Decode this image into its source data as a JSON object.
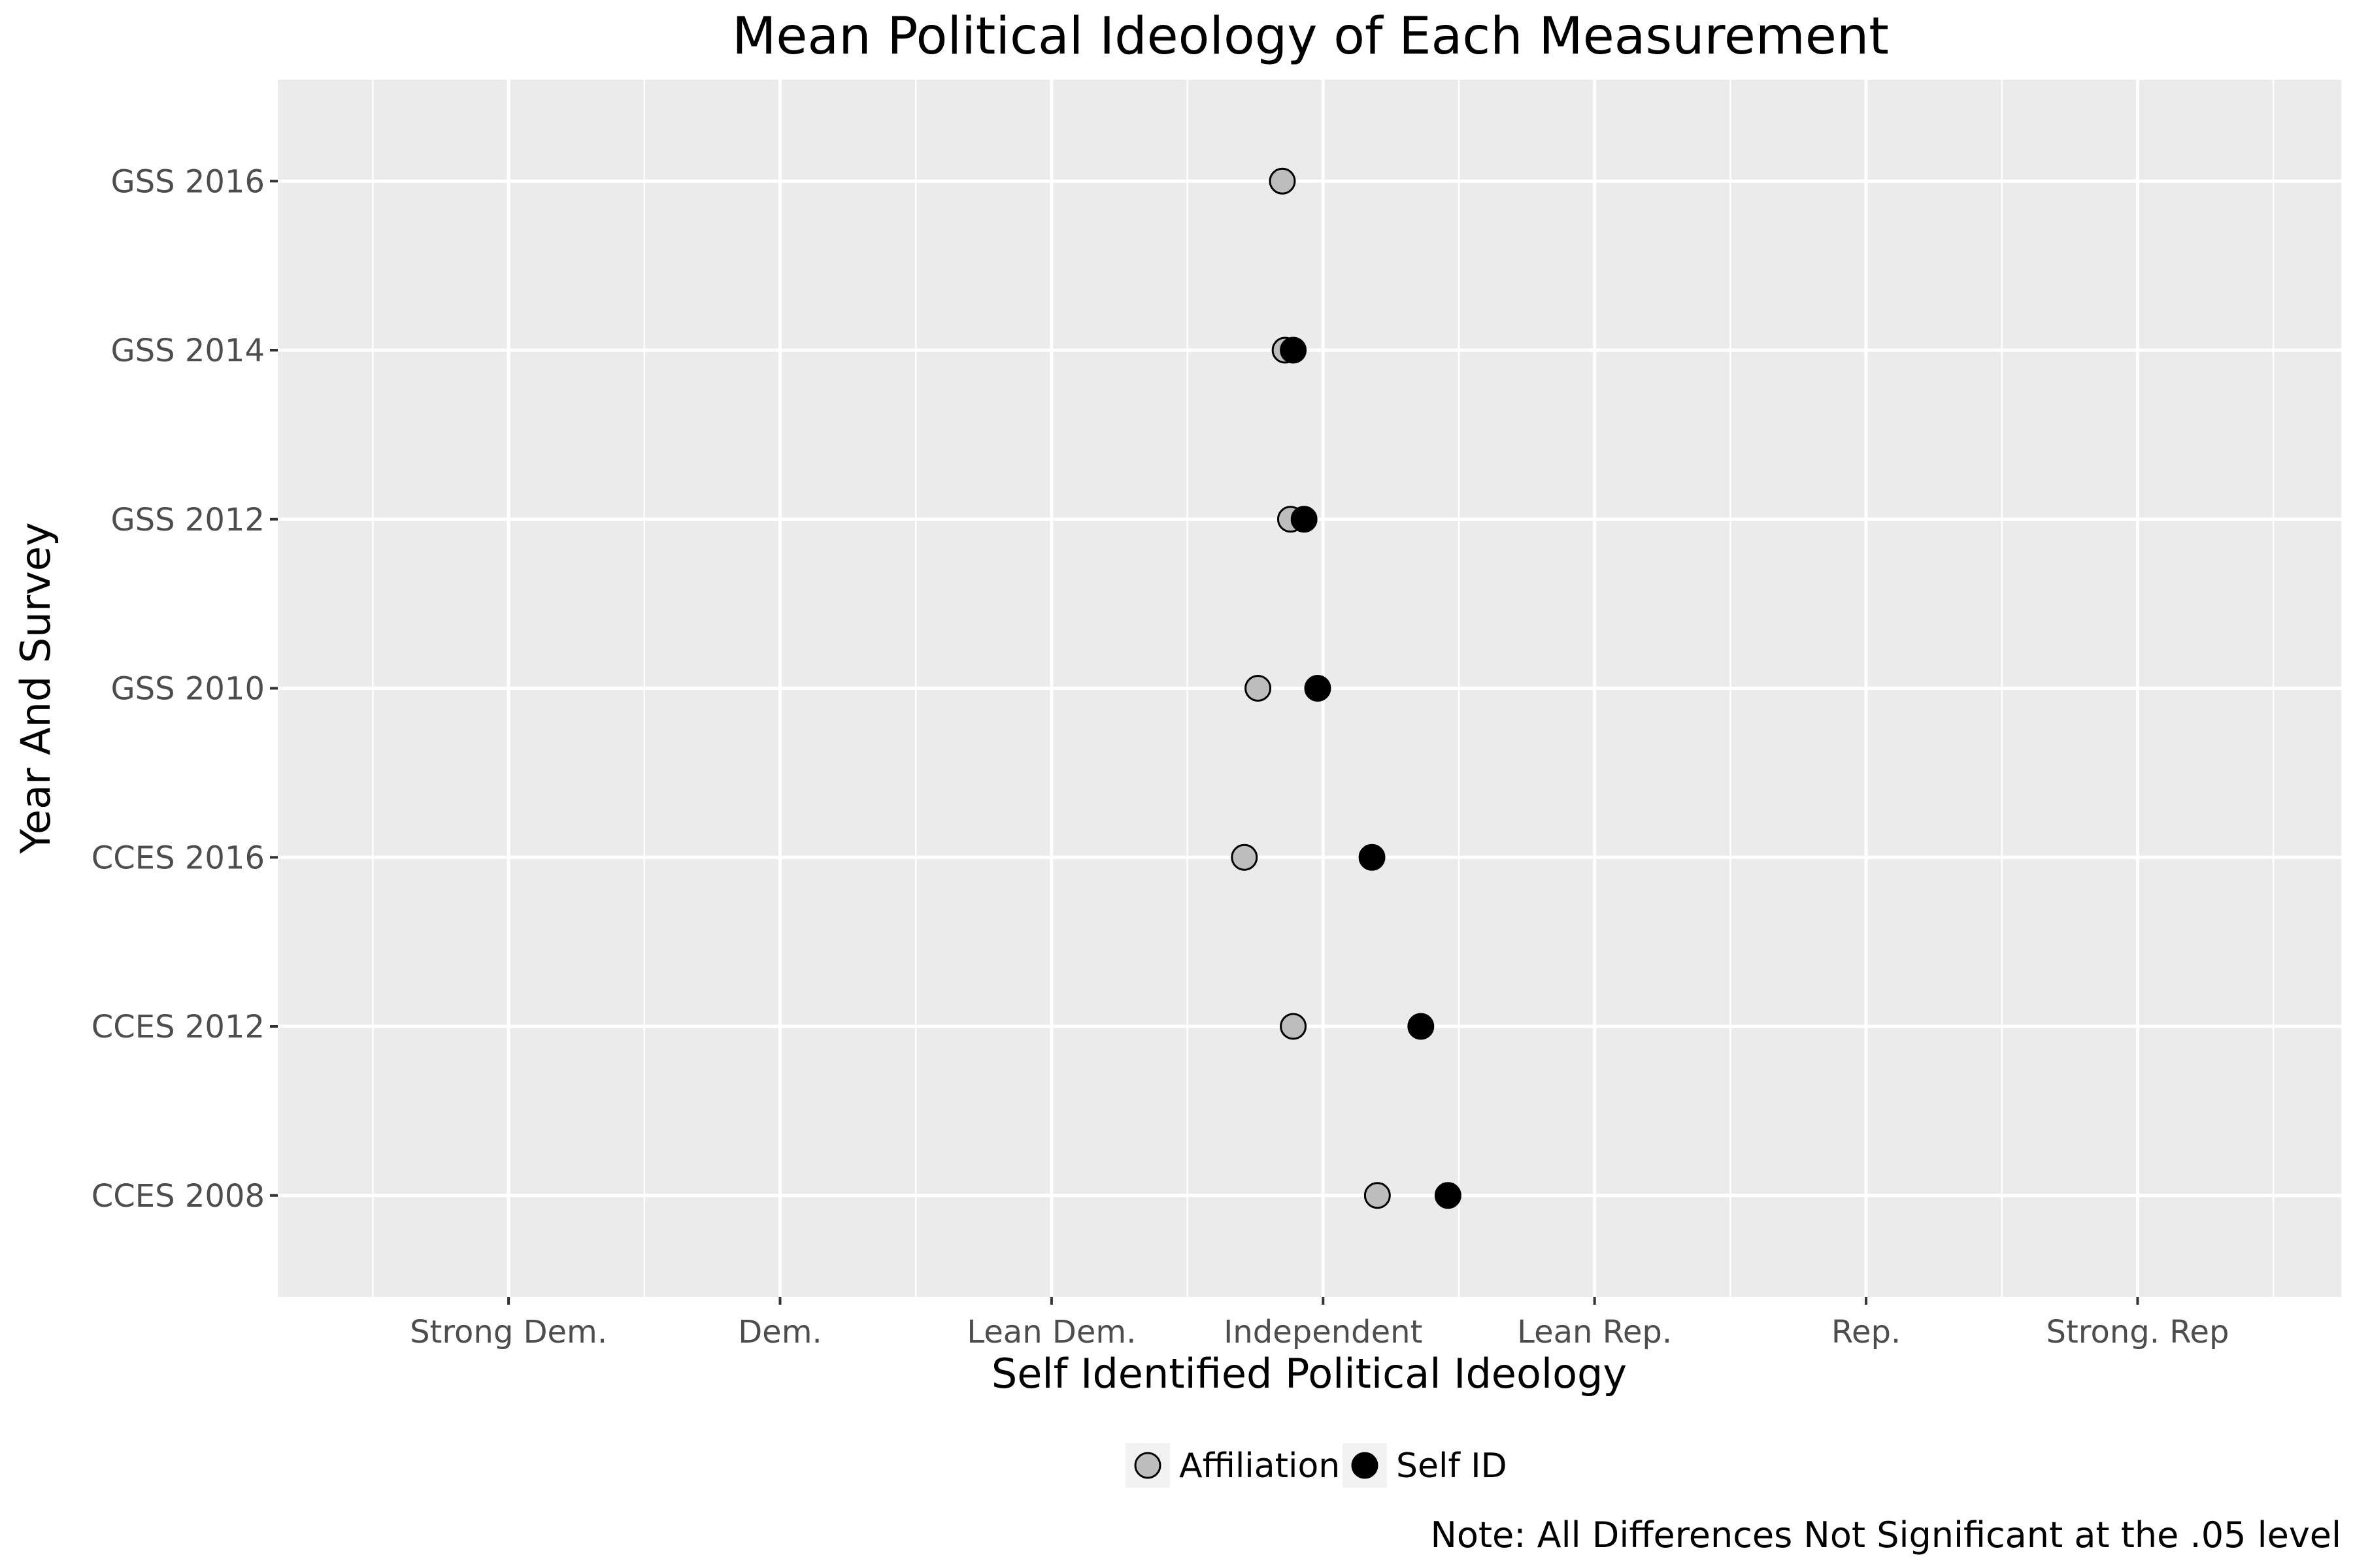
{
  "chart_data": {
    "type": "scatter",
    "title": "Mean Political Ideology of Each Measurement",
    "xlabel": "Self Identified Political Ideology",
    "ylabel": "Year And Survey",
    "x_tick_labels": [
      "Strong Dem.",
      "Dem.",
      "Lean Dem.",
      "Independent",
      "Lean Rep.",
      "Rep.",
      "Strong. Rep"
    ],
    "xlim": [
      0.15,
      7.75
    ],
    "categories": [
      "CCES 2008",
      "CCES 2012",
      "CCES 2016",
      "GSS 2010",
      "GSS 2012",
      "GSS 2014",
      "GSS 2016"
    ],
    "grid": true,
    "legend_position": "bottom",
    "series": [
      {
        "name": "Affiliation",
        "color": "#bdbdbd",
        "values": [
          4.2,
          3.89,
          3.71,
          3.76,
          3.88,
          3.86,
          3.85
        ]
      },
      {
        "name": "Self ID",
        "color": "#000000",
        "values": [
          4.46,
          4.36,
          4.18,
          3.98,
          3.93,
          3.89,
          null
        ]
      }
    ],
    "note": "Note: All Differences Not Significant at the .05 level"
  }
}
